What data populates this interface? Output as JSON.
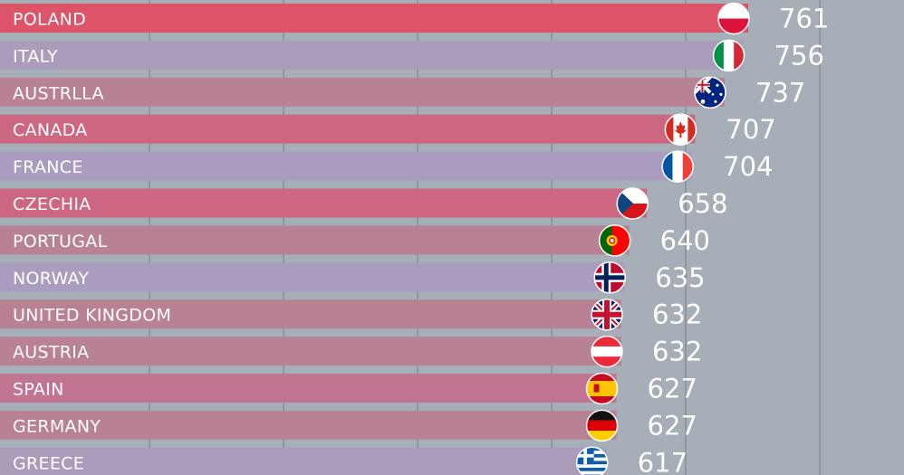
{
  "chart_data": {
    "type": "bar",
    "orientation": "horizontal",
    "categories": [
      "POLAND",
      "ITALY",
      "AUSTRLLA",
      "CANADA",
      "FRANCE",
      "CZECHIA",
      "PORTUGAL",
      "NORWAY",
      "UNITED KINGDOM",
      "AUSTRIA",
      "SPAIN",
      "GERMANY",
      "GREECE"
    ],
    "values": [
      761,
      756,
      737,
      707,
      704,
      658,
      640,
      635,
      632,
      632,
      627,
      627,
      617
    ],
    "value_labels": [
      "761",
      "756",
      "737",
      "707",
      "704",
      "658",
      "640",
      "635",
      "632",
      "632",
      "627",
      "627",
      "617"
    ],
    "flags": [
      "poland-flag-icon",
      "italy-flag-icon",
      "australia-flag-icon",
      "canada-flag-icon",
      "france-flag-icon",
      "czechia-flag-icon",
      "portugal-flag-icon",
      "norway-flag-icon",
      "united-kingdom-flag-icon",
      "austria-flag-icon",
      "spain-flag-icon",
      "germany-flag-icon",
      "greece-flag-icon"
    ],
    "bar_colors": [
      "#dd5468",
      "#ab9cbc",
      "#b88194",
      "#cd6681",
      "#aa9cbe",
      "#cd6681",
      "#b88194",
      "#aa9cbe",
      "#b88194",
      "#b88194",
      "#c27591",
      "#b88194",
      "#ab9cbc"
    ],
    "title": "",
    "xlabel": "",
    "ylabel": "",
    "xlim": [
      0,
      761
    ],
    "grid": true,
    "legend": "none",
    "background_color": "#a6aeb7"
  }
}
